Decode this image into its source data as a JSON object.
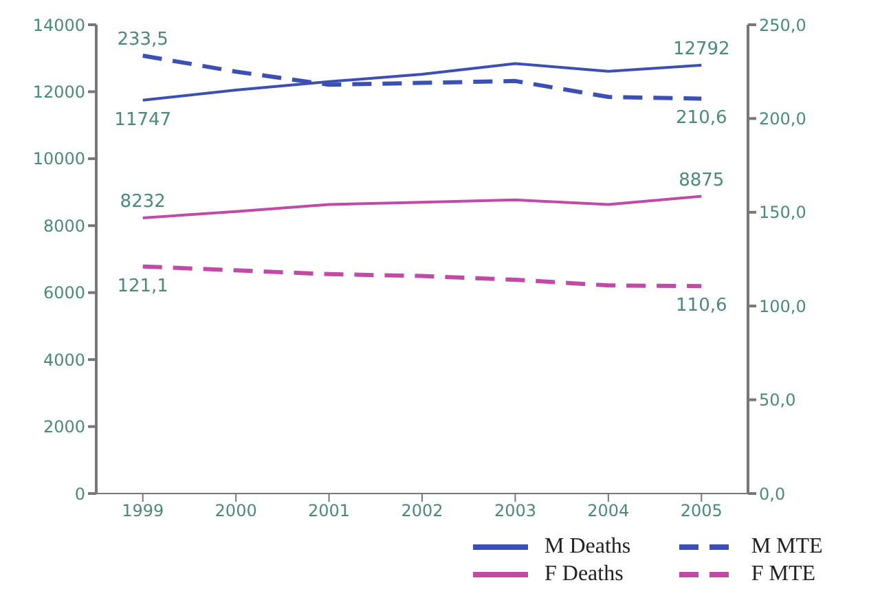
{
  "chart_data": {
    "type": "line",
    "categories": [
      "1999",
      "2000",
      "2001",
      "2002",
      "2003",
      "2004",
      "2005"
    ],
    "ylim": [
      0,
      14000
    ],
    "yticks": [
      0,
      2000,
      4000,
      6000,
      8000,
      10000,
      12000,
      14000
    ],
    "y2lim": [
      0,
      250
    ],
    "y2ticks": [
      {
        "value": 0,
        "label": "0,0"
      },
      {
        "value": 50,
        "label": "50,0"
      },
      {
        "value": 100,
        "label": "100,0"
      },
      {
        "value": 150,
        "label": "150,0"
      },
      {
        "value": 200,
        "label": "200,0"
      },
      {
        "value": 250,
        "label": "250,0"
      }
    ],
    "series": [
      {
        "name": "M Deaths",
        "color": "#3b4fb4",
        "line_style": "solid",
        "values": [
          11747,
          12050,
          12300,
          12520,
          12840,
          12610,
          12792
        ],
        "value_labels": [
          "11747",
          null,
          null,
          null,
          null,
          null,
          "12792"
        ]
      },
      {
        "name": "F Deaths",
        "color": "#c24aa6",
        "line_style": "solid",
        "values": [
          8232,
          8420,
          8630,
          8700,
          8770,
          8630,
          8875
        ],
        "value_labels": [
          "8232",
          null,
          null,
          null,
          null,
          null,
          "8875"
        ]
      },
      {
        "name": "M MTE",
        "color": "#3b4fb4",
        "line_style": "dashed",
        "axis": "y2",
        "values": [
          233.5,
          225,
          218,
          219,
          220,
          211.5,
          210.6
        ],
        "value_labels": [
          "233,5",
          null,
          null,
          null,
          null,
          null,
          "210,6"
        ]
      },
      {
        "name": "F MTE",
        "color": "#c24aa6",
        "line_style": "dashed",
        "axis": "y2",
        "values": [
          121.1,
          119,
          117,
          116,
          114,
          111,
          110.6
        ],
        "value_labels": [
          "121,1",
          null,
          null,
          null,
          null,
          null,
          "110,6"
        ]
      }
    ],
    "legend": "bottom right",
    "grid": false,
    "marker": "none"
  }
}
